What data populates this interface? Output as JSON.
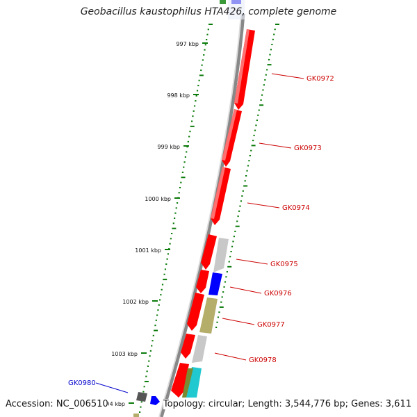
{
  "title": "Geobacillus kaustophilus HTA426, complete genome",
  "footer": {
    "accession": "Accession: NC_006510",
    "topology": "Topology: circular; Length: 3,544,776 bp; Genes: 3,611"
  },
  "colors": {
    "red": "#ff0000",
    "blue": "#0000ff",
    "gray": "#c8c8c8",
    "olive": "#b5ad6a",
    "cyan": "#20c8d0",
    "green": "#0a7a0a",
    "dark-gray": "#555555"
  },
  "ticks": [
    {
      "label": "997 kbp"
    },
    {
      "label": "998 kbp"
    },
    {
      "label": "999 kbp"
    },
    {
      "label": "1000 kbp"
    },
    {
      "label": "1001 kbp"
    },
    {
      "label": "1002 kbp"
    },
    {
      "label": "1003 kbp"
    },
    {
      "label": "1004 kbp"
    }
  ],
  "gene_labels": [
    {
      "name": "GK0972",
      "color": "#cc0000"
    },
    {
      "name": "GK0973",
      "color": "#cc0000"
    },
    {
      "name": "GK0974",
      "color": "#cc0000"
    },
    {
      "name": "GK0975",
      "color": "#cc0000"
    },
    {
      "name": "GK0976",
      "color": "#cc0000"
    },
    {
      "name": "GK0977",
      "color": "#cc0000"
    },
    {
      "name": "GK0978",
      "color": "#cc0000"
    },
    {
      "name": "GK0980",
      "color": "#0000cc"
    }
  ]
}
